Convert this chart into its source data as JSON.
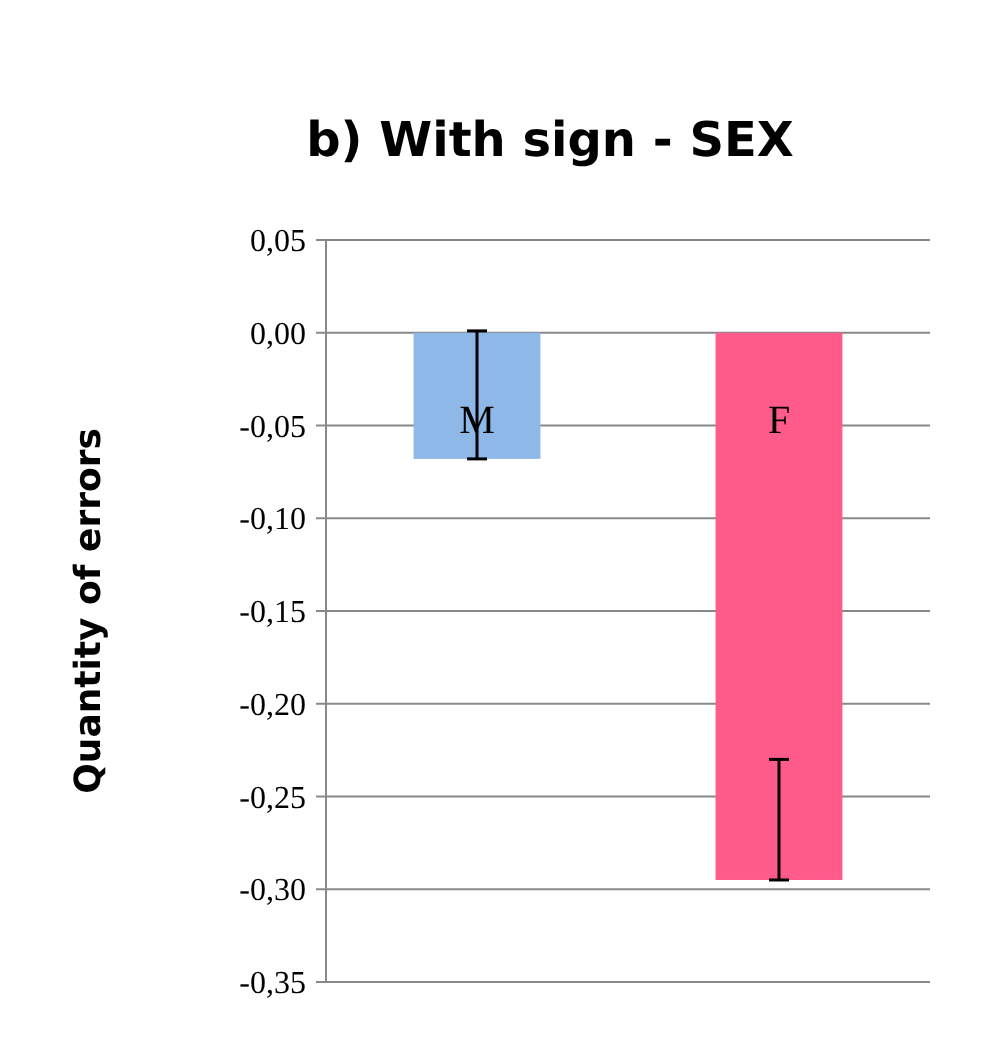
{
  "chart_data": {
    "type": "bar",
    "title": "b) With sign - SEX",
    "ylabel": "Quantity of errors",
    "categories": [
      "M",
      "F"
    ],
    "values": [
      -0.068,
      -0.295
    ],
    "colors": [
      "#8db8e8",
      "#ff5b8a"
    ],
    "errors": [
      [
        -0.068,
        0.001
      ],
      [
        -0.295,
        -0.23
      ]
    ],
    "ylim": [
      -0.35,
      0.05
    ],
    "yticks": [
      {
        "value": 0.05,
        "label": "0,05"
      },
      {
        "value": 0,
        "label": "0,00"
      },
      {
        "value": -0.05,
        "label": "-0,05"
      },
      {
        "value": -0.1,
        "label": "-0,10"
      },
      {
        "value": -0.15,
        "label": "-0,15"
      },
      {
        "value": -0.2,
        "label": "-0,20"
      },
      {
        "value": -0.25,
        "label": "-0,25"
      },
      {
        "value": -0.3,
        "label": "-0,30"
      },
      {
        "value": -0.35,
        "label": "-0,35"
      }
    ],
    "grid": "y"
  }
}
